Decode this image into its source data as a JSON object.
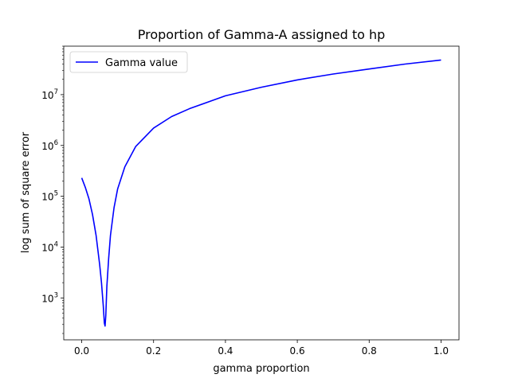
{
  "chart_data": {
    "type": "line",
    "title": "Proportion of Gamma-A assigned to hp",
    "xlabel": "gamma proportion",
    "ylabel": "log sum of square error",
    "xlim": [
      -0.05,
      1.05
    ],
    "ylim": [
      150,
      90000000
    ],
    "yscale": "log",
    "x_ticks": [
      0.0,
      0.2,
      0.4,
      0.6,
      0.8,
      1.0
    ],
    "x_tick_labels": [
      "0.0",
      "0.2",
      "0.4",
      "0.6",
      "0.8",
      "1.0"
    ],
    "y_ticks": [
      {
        "value": 1000,
        "base": "10",
        "exp": "3"
      },
      {
        "value": 10000,
        "base": "10",
        "exp": "4"
      },
      {
        "value": 100000,
        "base": "10",
        "exp": "5"
      },
      {
        "value": 1000000,
        "base": "10",
        "exp": "6"
      },
      {
        "value": 10000000,
        "base": "10",
        "exp": "7"
      }
    ],
    "grid": false,
    "legend_position": "upper-left",
    "series": [
      {
        "name": "Gamma value",
        "color": "#0000ff",
        "x": [
          0.0,
          0.01,
          0.02,
          0.03,
          0.04,
          0.05,
          0.055,
          0.06,
          0.063,
          0.065,
          0.067,
          0.07,
          0.075,
          0.08,
          0.09,
          0.1,
          0.12,
          0.15,
          0.2,
          0.25,
          0.3,
          0.4,
          0.5,
          0.6,
          0.7,
          0.8,
          0.9,
          1.0
        ],
        "y": [
          230000,
          150000,
          90000,
          44000,
          17000,
          4500,
          2000,
          700,
          320,
          280,
          450,
          1700,
          6000,
          17000,
          60000,
          140000,
          380000,
          950000,
          2200000,
          3700000,
          5300000,
          9500000,
          14000000,
          19500000,
          25500000,
          32000000,
          40000000,
          48000000
        ]
      }
    ]
  }
}
